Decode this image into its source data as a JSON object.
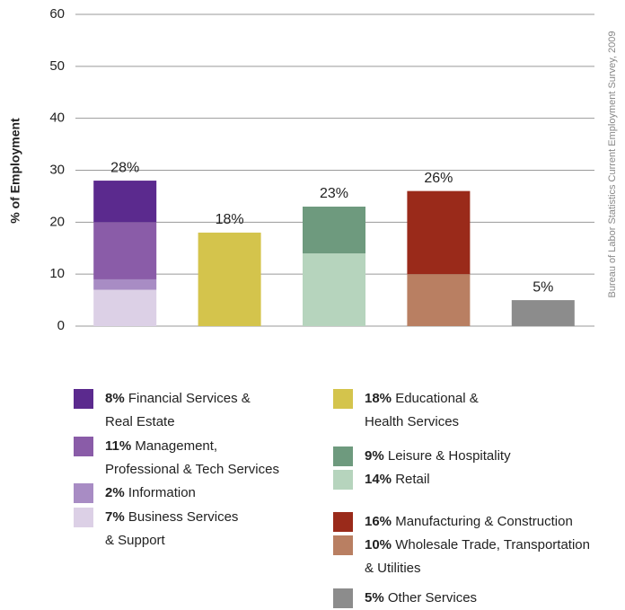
{
  "chart_data": {
    "type": "stacked_bar",
    "ylabel": "% of Employment",
    "source": "Bureau of Labor Statistics Current Employment Survey, 2009",
    "categories": [
      null,
      null,
      null,
      null,
      null
    ],
    "total_labels": [
      "28%",
      "18%",
      "23%",
      "26%",
      "5%"
    ],
    "ylim": [
      0,
      60
    ],
    "yticks": [
      0,
      10,
      20,
      30,
      40,
      50,
      60
    ],
    "grid": true,
    "series": [
      {
        "name": "Financial Services &\nReal Estate",
        "color": "#5b2a8e",
        "values": [
          8,
          null,
          null,
          null,
          null
        ],
        "value_labels": [
          "8%",
          null,
          null,
          null,
          null
        ]
      },
      {
        "name": "Management,\nProfessional & Tech Services",
        "color": "#8a5ca8",
        "values": [
          11,
          null,
          null,
          null,
          null
        ],
        "value_labels": [
          "11%",
          null,
          null,
          null,
          null
        ]
      },
      {
        "name": "Information",
        "color": "#a88cc4",
        "values": [
          2,
          null,
          null,
          null,
          null
        ],
        "value_labels": [
          "2%",
          null,
          null,
          null,
          null
        ]
      },
      {
        "name": "Business Services\n& Support",
        "color": "#dcd0e6",
        "values": [
          7,
          null,
          null,
          null,
          null
        ],
        "value_labels": [
          "7%",
          null,
          null,
          null,
          null
        ]
      },
      {
        "name": "Educational &\nHealth Services",
        "color": "#d4c44c",
        "values": [
          null,
          18,
          null,
          null,
          null
        ],
        "value_labels": [
          null,
          "18%",
          null,
          null,
          null
        ]
      },
      {
        "name": "Leisure & Hospitality",
        "color": "#6e9a7e",
        "values": [
          null,
          null,
          9,
          null,
          null
        ],
        "value_labels": [
          null,
          null,
          "9%",
          null,
          null
        ]
      },
      {
        "name": "Retail",
        "color": "#b6d4bd",
        "values": [
          null,
          null,
          14,
          null,
          null
        ],
        "value_labels": [
          null,
          null,
          "14%",
          null,
          null
        ]
      },
      {
        "name": "Manufacturing & Construction",
        "color": "#9a2a1a",
        "values": [
          null,
          null,
          null,
          16,
          null
        ],
        "value_labels": [
          null,
          null,
          null,
          "16%",
          null
        ]
      },
      {
        "name": "Wholesale Trade, Transportation\n& Utilities",
        "color": "#b97f62",
        "values": [
          null,
          null,
          null,
          10,
          null
        ],
        "value_labels": [
          null,
          null,
          null,
          "10%",
          null
        ]
      },
      {
        "name": "Other Services",
        "color": "#8c8c8c",
        "values": [
          null,
          null,
          null,
          null,
          5
        ],
        "value_labels": [
          null,
          null,
          null,
          null,
          "5%"
        ]
      }
    ]
  }
}
